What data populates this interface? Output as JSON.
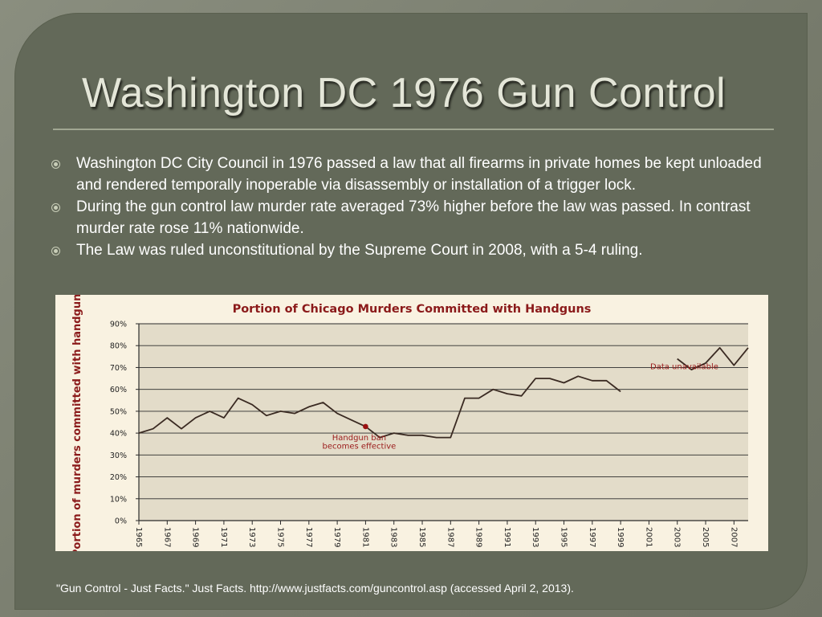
{
  "slide": {
    "title": "Washington DC 1976 Gun Control",
    "bullets": [
      "Washington DC City Council in 1976 passed a law that all firearms in private homes be kept unloaded and rendered temporally inoperable via disassembly or installation of a trigger lock.",
      "During the gun control law murder rate averaged 73% higher before the law was passed. In contrast murder rate rose 11% nationwide.",
      "The Law was ruled unconstitutional by the Supreme Court in 2008, with a 5-4 ruling."
    ],
    "citation": "\"Gun Control - Just Facts.\" Just Facts. http://www.justfacts.com/guncontrol.asp (accessed April 2, 2013).",
    "bullet_icon": "circle-bullet-icon"
  },
  "colors": {
    "background": "#7d8172",
    "panel": "#636959",
    "title": "#e4e6d8",
    "chart_background": "#f9f2e1",
    "chart_plot": "#e3dcc9",
    "chart_title": "#8b1a1a",
    "annotation": "#9b1b1b",
    "line": "#3a2a22",
    "marker": "#9a1010"
  },
  "chart_data": {
    "type": "line",
    "title": "Portion of Chicago Murders Committed with Handguns",
    "ylabel": "Portion of murders committed with handguns",
    "xlabel": "",
    "ylim": [
      0,
      90
    ],
    "xlim": [
      1965,
      2008
    ],
    "y_ticks": [
      "0%",
      "10%",
      "20%",
      "30%",
      "40%",
      "50%",
      "60%",
      "70%",
      "80%",
      "90%"
    ],
    "x_ticks": [
      "1965",
      "1967",
      "1969",
      "1971",
      "1973",
      "1975",
      "1977",
      "1979",
      "1981",
      "1983",
      "1985",
      "1987",
      "1989",
      "1991",
      "1993",
      "1995",
      "1997",
      "1999",
      "2001",
      "2003",
      "2005",
      "2007"
    ],
    "grid": "horizontal",
    "segments": [
      {
        "x": [
          1965,
          1966,
          1967,
          1968,
          1969,
          1970,
          1971,
          1972,
          1973,
          1974,
          1975,
          1976,
          1977,
          1978,
          1979,
          1980,
          1981,
          1982,
          1983,
          1984,
          1985,
          1986,
          1987,
          1988,
          1989,
          1990,
          1991,
          1992,
          1993,
          1994,
          1995,
          1996,
          1997,
          1998,
          1999
        ],
        "y": [
          40,
          42,
          47,
          42,
          47,
          50,
          47,
          56,
          53,
          48,
          50,
          49,
          52,
          54,
          49,
          46,
          43,
          38,
          40,
          39,
          39,
          38,
          38,
          56,
          56,
          60,
          58,
          57,
          65,
          65,
          63,
          66,
          64,
          64,
          59
        ]
      },
      {
        "x": [
          2003,
          2004,
          2005,
          2006,
          2007,
          2008
        ],
        "y": [
          74,
          69,
          72,
          79,
          71,
          79
        ]
      }
    ],
    "annotations": [
      {
        "text_lines": [
          "Handgun ban",
          "becomes effective"
        ],
        "x": 1981,
        "y": 43,
        "marker": true
      },
      {
        "text_lines": [
          "Data unavailable"
        ],
        "x": 2001,
        "y": 66,
        "marker": false
      }
    ]
  }
}
